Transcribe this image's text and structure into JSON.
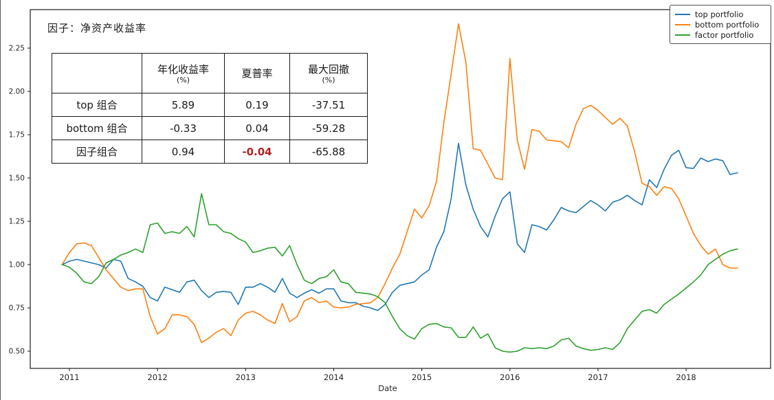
{
  "title": "因子：净资产收益率",
  "stats_table": {
    "col_headers": [
      {
        "line1": "",
        "line2": ""
      },
      {
        "line1": "年化收益率",
        "line2": "(%)"
      },
      {
        "line1": "夏普率",
        "line2": ""
      },
      {
        "line1": "最大回撤",
        "line2": "(%)"
      }
    ],
    "rows": [
      {
        "label": "top 组合",
        "values": [
          "5.89",
          "0.19",
          "-37.51"
        ],
        "highlight_col": -1
      },
      {
        "label": "bottom 组合",
        "values": [
          "-0.33",
          "0.04",
          "-59.28"
        ],
        "highlight_col": -1
      },
      {
        "label": "因子组合",
        "values": [
          "0.94",
          "-0.04",
          "-65.88"
        ],
        "highlight_col": 1
      }
    ],
    "highlight_color": "#b22222"
  },
  "legend": [
    {
      "label": "top portfolio",
      "color": "#1f77b4"
    },
    {
      "label": "bottom portfolio",
      "color": "#ff7f0e"
    },
    {
      "label": "factor portfolio",
      "color": "#2ca02c"
    }
  ],
  "chart_data": {
    "type": "line",
    "title": "因子：净资产收益率",
    "xlabel": "Date",
    "ylabel": "",
    "grid": false,
    "legend_position": "upper right",
    "x_monthly": {
      "start_year": 2010,
      "start_month": 12,
      "points": 93,
      "end": "2018-08"
    },
    "x_tick_labels": [
      "2011",
      "2012",
      "2013",
      "2014",
      "2015",
      "2016",
      "2017",
      "2018"
    ],
    "y_ticks": [
      0.5,
      0.75,
      1.0,
      1.25,
      1.5,
      1.75,
      2.0,
      2.25
    ],
    "ylim": [
      0.4,
      2.47
    ],
    "series": [
      {
        "name": "top portfolio",
        "color": "#1f77b4",
        "values": [
          1.0,
          1.02,
          1.03,
          1.02,
          1.01,
          1.0,
          0.98,
          1.03,
          1.02,
          0.92,
          0.9,
          0.875,
          0.81,
          0.79,
          0.87,
          0.855,
          0.84,
          0.9,
          0.91,
          0.85,
          0.81,
          0.84,
          0.845,
          0.84,
          0.77,
          0.87,
          0.87,
          0.89,
          0.87,
          0.84,
          0.92,
          0.835,
          0.81,
          0.835,
          0.855,
          0.835,
          0.86,
          0.86,
          0.79,
          0.78,
          0.78,
          0.76,
          0.75,
          0.735,
          0.77,
          0.84,
          0.88,
          0.89,
          0.9,
          0.94,
          0.97,
          1.1,
          1.19,
          1.38,
          1.7,
          1.46,
          1.32,
          1.22,
          1.16,
          1.28,
          1.38,
          1.42,
          1.12,
          1.07,
          1.23,
          1.22,
          1.2,
          1.26,
          1.33,
          1.31,
          1.3,
          1.335,
          1.37,
          1.345,
          1.31,
          1.36,
          1.375,
          1.4,
          1.37,
          1.345,
          1.49,
          1.445,
          1.55,
          1.63,
          1.66,
          1.56,
          1.555,
          1.615,
          1.595,
          1.61,
          1.6,
          1.52,
          1.53
        ]
      },
      {
        "name": "bottom portfolio",
        "color": "#ff7f0e",
        "values": [
          1.0,
          1.07,
          1.12,
          1.125,
          1.11,
          1.04,
          0.97,
          0.92,
          0.87,
          0.85,
          0.86,
          0.86,
          0.7,
          0.6,
          0.63,
          0.71,
          0.71,
          0.7,
          0.655,
          0.55,
          0.575,
          0.61,
          0.63,
          0.59,
          0.68,
          0.72,
          0.73,
          0.71,
          0.68,
          0.66,
          0.775,
          0.67,
          0.7,
          0.79,
          0.81,
          0.78,
          0.79,
          0.755,
          0.75,
          0.755,
          0.77,
          0.775,
          0.78,
          0.81,
          0.89,
          0.98,
          1.06,
          1.19,
          1.32,
          1.27,
          1.34,
          1.48,
          1.82,
          2.1,
          2.39,
          2.17,
          1.67,
          1.66,
          1.58,
          1.5,
          1.49,
          2.19,
          1.72,
          1.55,
          1.78,
          1.77,
          1.72,
          1.715,
          1.71,
          1.675,
          1.81,
          1.9,
          1.92,
          1.89,
          1.85,
          1.81,
          1.845,
          1.8,
          1.65,
          1.47,
          1.45,
          1.4,
          1.45,
          1.44,
          1.38,
          1.28,
          1.18,
          1.11,
          1.06,
          1.09,
          1.0,
          0.98,
          0.98
        ]
      },
      {
        "name": "factor portfolio",
        "color": "#2ca02c",
        "values": [
          1.0,
          0.985,
          0.95,
          0.9,
          0.89,
          0.93,
          1.01,
          1.03,
          1.055,
          1.07,
          1.09,
          1.07,
          1.23,
          1.24,
          1.18,
          1.19,
          1.18,
          1.22,
          1.16,
          1.41,
          1.23,
          1.23,
          1.19,
          1.18,
          1.15,
          1.13,
          1.07,
          1.08,
          1.095,
          1.1,
          1.05,
          1.11,
          1.0,
          0.91,
          0.89,
          0.92,
          0.93,
          0.97,
          0.9,
          0.89,
          0.84,
          0.835,
          0.83,
          0.815,
          0.78,
          0.7,
          0.63,
          0.59,
          0.57,
          0.63,
          0.655,
          0.66,
          0.64,
          0.635,
          0.58,
          0.58,
          0.64,
          0.575,
          0.6,
          0.52,
          0.5,
          0.495,
          0.5,
          0.52,
          0.515,
          0.52,
          0.515,
          0.53,
          0.565,
          0.575,
          0.53,
          0.515,
          0.505,
          0.51,
          0.52,
          0.51,
          0.55,
          0.63,
          0.68,
          0.73,
          0.74,
          0.72,
          0.77,
          0.8,
          0.83,
          0.865,
          0.9,
          0.94,
          1.0,
          1.03,
          1.06,
          1.08,
          1.09
        ]
      }
    ]
  }
}
